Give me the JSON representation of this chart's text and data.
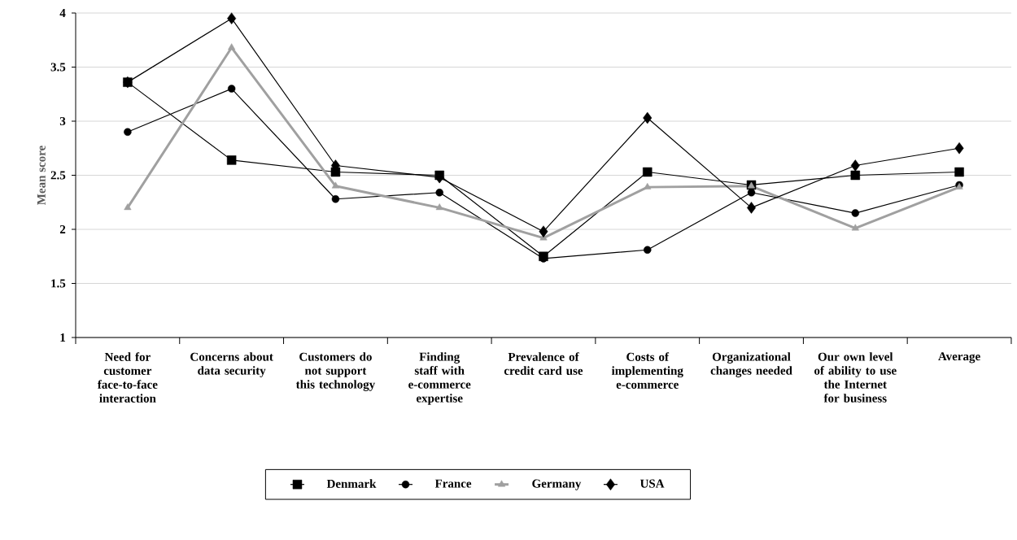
{
  "chart_data": {
    "type": "line",
    "ylabel": "Mean score",
    "categories": [
      "Need for customer face-to-face interaction",
      "Concerns about data security",
      "Customers do not support this technology",
      "Finding staff with e-commerce expertise",
      "Prevalence of credit card use",
      "Costs of implementing e-commerce",
      "Organizational changes needed",
      "Our own level of ability to use the Internet for business",
      "Average"
    ],
    "series": [
      {
        "name": "Denmark",
        "color": "#000000",
        "marker": "square",
        "values": [
          3.36,
          2.64,
          2.53,
          2.5,
          1.75,
          2.53,
          2.41,
          2.5,
          2.53
        ]
      },
      {
        "name": "France",
        "color": "#000000",
        "marker": "circle",
        "values": [
          2.9,
          3.3,
          2.28,
          2.34,
          1.73,
          1.81,
          2.34,
          2.15,
          2.41
        ]
      },
      {
        "name": "Germany",
        "color": "#a0a0a0",
        "marker": "triangle",
        "values": [
          2.2,
          3.68,
          2.4,
          2.2,
          1.92,
          2.39,
          2.4,
          2.01,
          2.39
        ]
      },
      {
        "name": "USA",
        "color": "#000000",
        "marker": "diamond",
        "values": [
          3.36,
          3.95,
          2.59,
          2.48,
          1.98,
          3.03,
          2.2,
          2.59,
          2.75
        ]
      }
    ],
    "ylim": [
      1,
      4
    ],
    "yticks": [
      1,
      1.5,
      2,
      2.5,
      3,
      3.5,
      4
    ],
    "grid": "y",
    "legend": "bottom",
    "line_style": "solid"
  }
}
